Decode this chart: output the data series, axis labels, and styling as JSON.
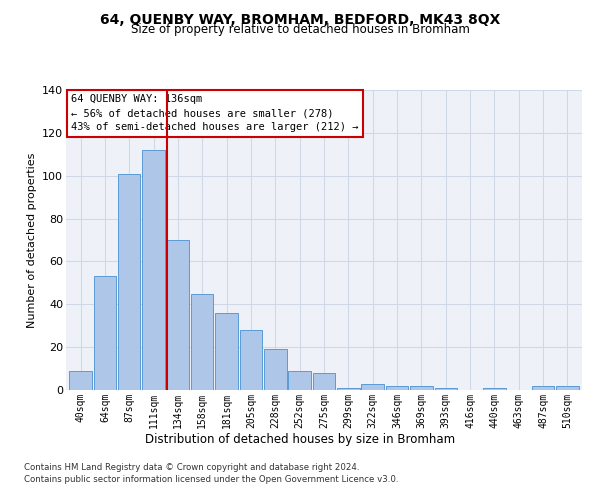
{
  "title": "64, QUENBY WAY, BROMHAM, BEDFORD, MK43 8QX",
  "subtitle": "Size of property relative to detached houses in Bromham",
  "xlabel": "Distribution of detached houses by size in Bromham",
  "ylabel": "Number of detached properties",
  "bin_labels": [
    "40sqm",
    "64sqm",
    "87sqm",
    "111sqm",
    "134sqm",
    "158sqm",
    "181sqm",
    "205sqm",
    "228sqm",
    "252sqm",
    "275sqm",
    "299sqm",
    "322sqm",
    "346sqm",
    "369sqm",
    "393sqm",
    "416sqm",
    "440sqm",
    "463sqm",
    "487sqm",
    "510sqm"
  ],
  "values": [
    9,
    53,
    101,
    112,
    70,
    45,
    36,
    28,
    19,
    9,
    8,
    1,
    3,
    2,
    2,
    1,
    0,
    1,
    0,
    2,
    2
  ],
  "bar_color": "#aec6e8",
  "bar_edge_color": "#5b9bd5",
  "vline_x": 4,
  "vline_color": "#cc0000",
  "annotation_box_text": "64 QUENBY WAY: 136sqm\n← 56% of detached houses are smaller (278)\n43% of semi-detached houses are larger (212) →",
  "annotation_box_color": "#cc0000",
  "ylim": [
    0,
    140
  ],
  "yticks": [
    0,
    20,
    40,
    60,
    80,
    100,
    120,
    140
  ],
  "grid_color": "#d0d8e8",
  "bg_color": "#eef2f8",
  "footer_line1": "Contains HM Land Registry data © Crown copyright and database right 2024.",
  "footer_line2": "Contains public sector information licensed under the Open Government Licence v3.0."
}
